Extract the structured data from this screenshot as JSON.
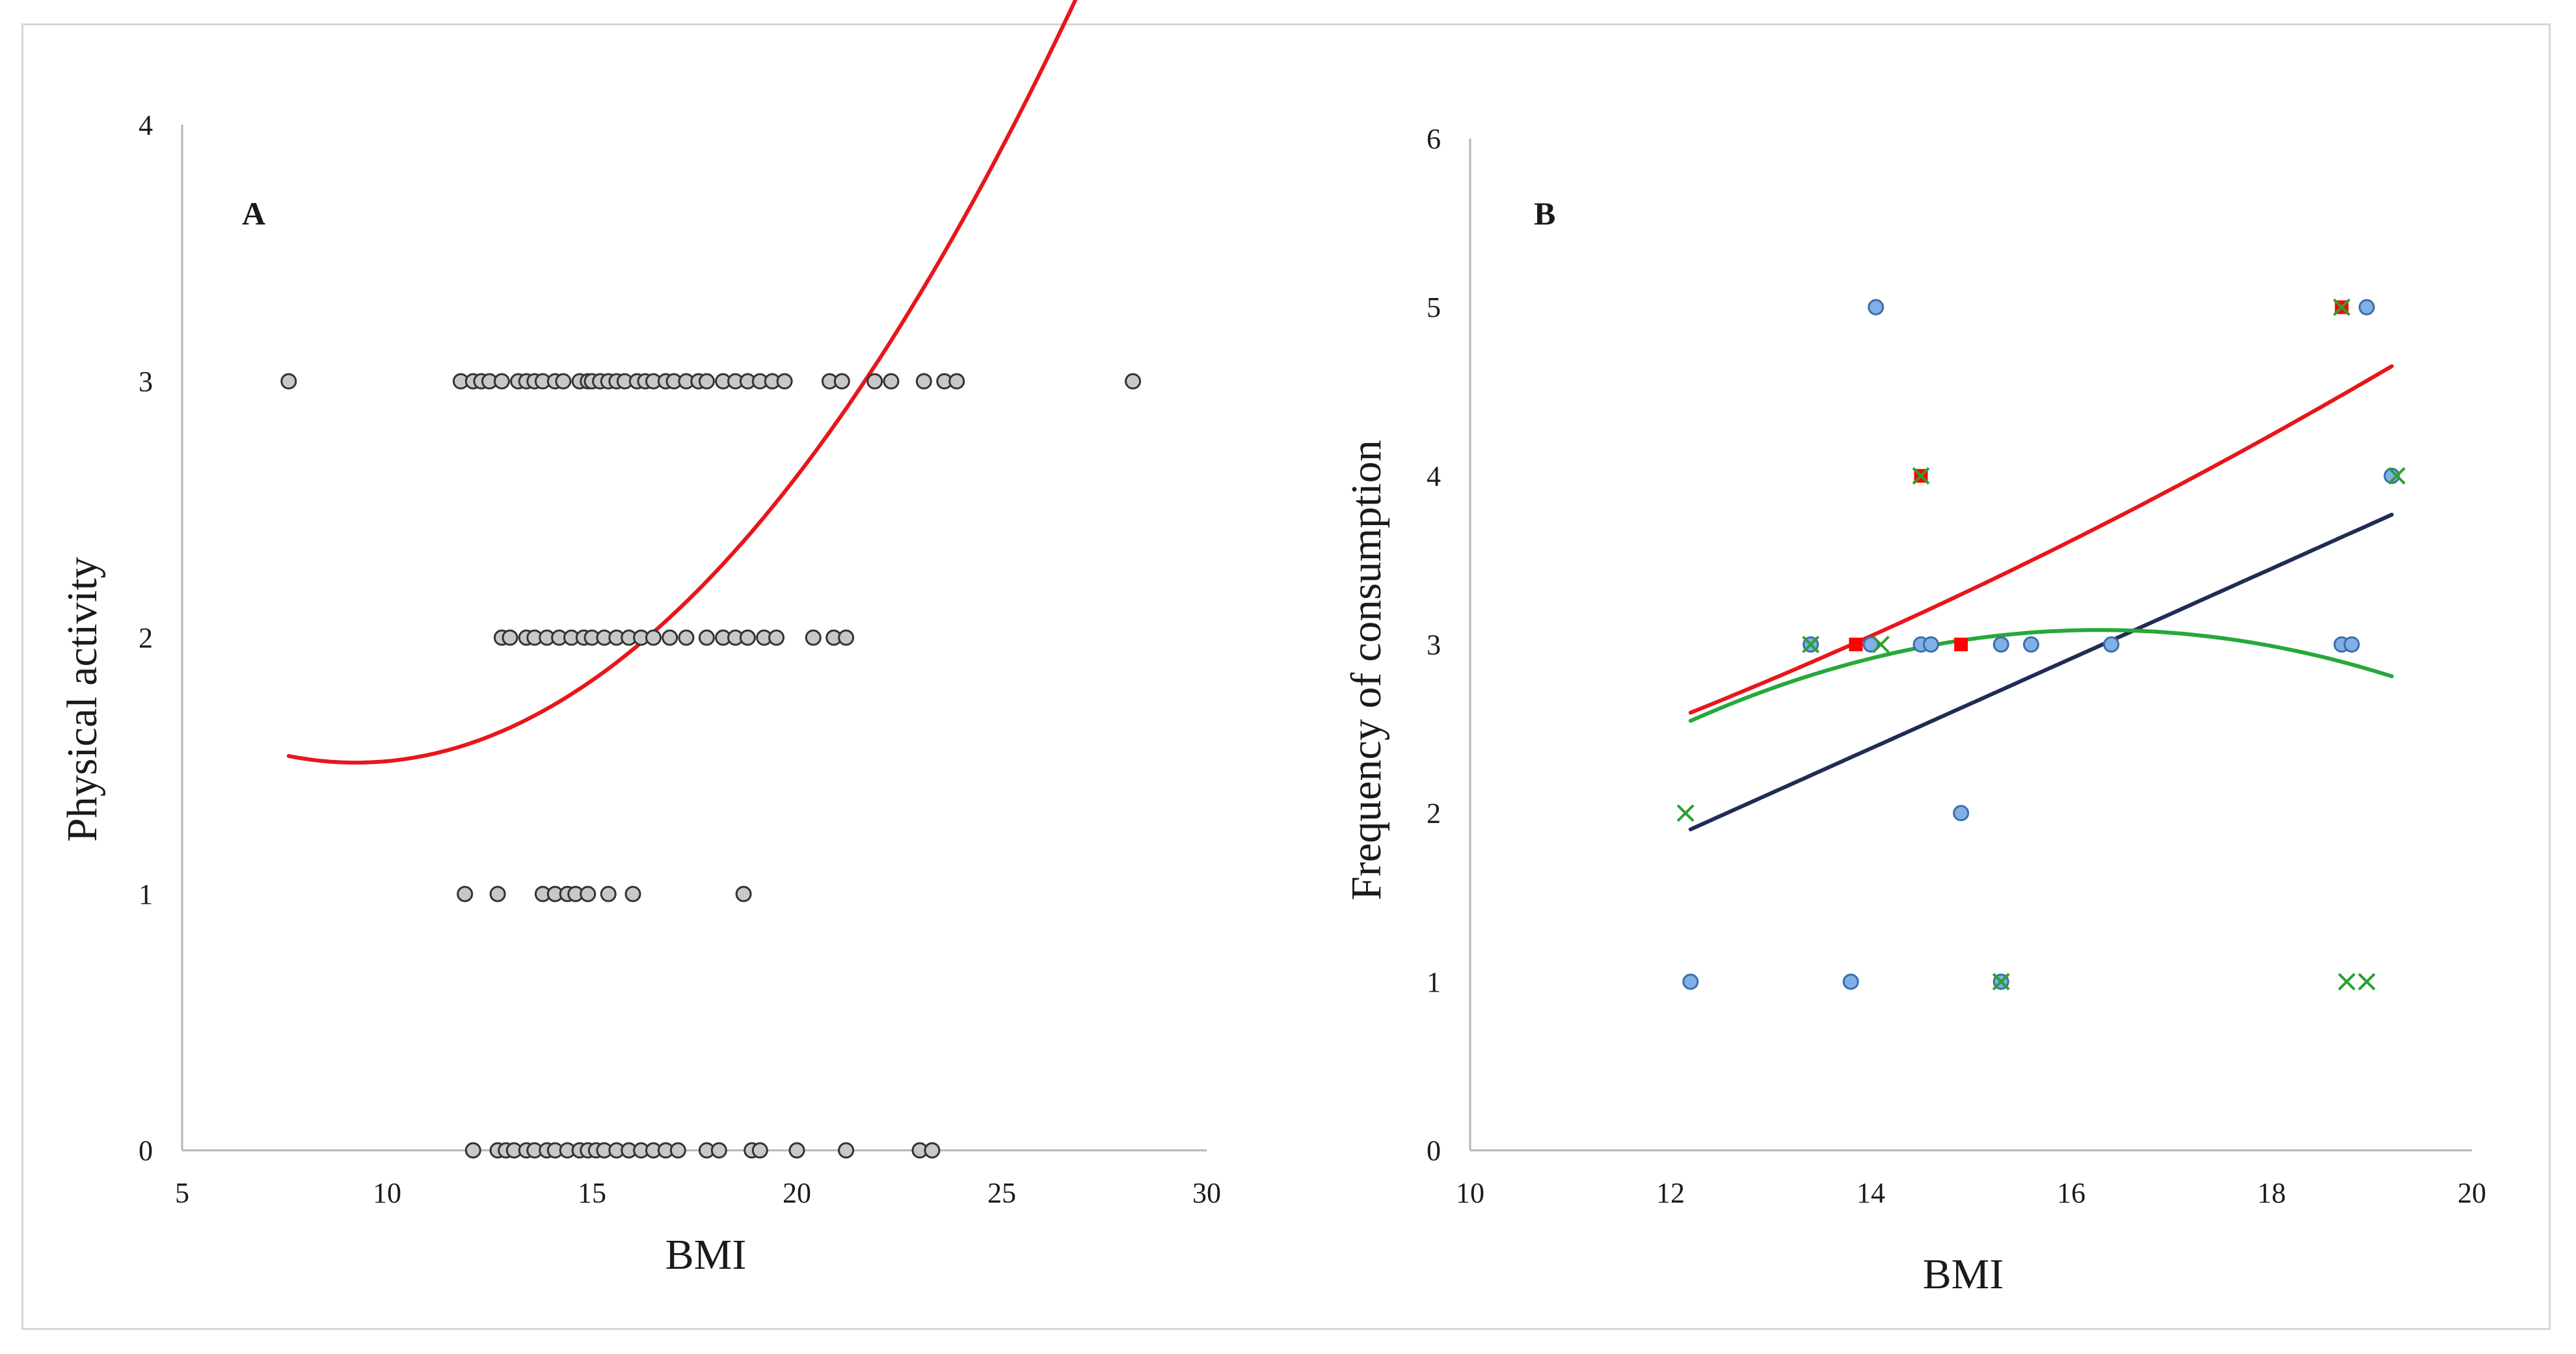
{
  "chart_data": [
    {
      "type": "scatter",
      "panel_label": "A",
      "xlabel": "BMI",
      "ylabel": "Physical activity",
      "xlim": [
        5,
        30
      ],
      "ylim": [
        0,
        4
      ],
      "xticks": [
        "5",
        "10",
        "15",
        "20",
        "25",
        "30"
      ],
      "yticks": [
        "0",
        "1",
        "2",
        "3",
        "4"
      ],
      "grid": false,
      "series": [
        {
          "name": "observations",
          "marker": "circle",
          "color": "#c8c8c8",
          "edge": "#333333",
          "points": [
            [
              7.6,
              3
            ],
            [
              11.8,
              3
            ],
            [
              12.1,
              3
            ],
            [
              12.3,
              3
            ],
            [
              12.5,
              3
            ],
            [
              12.8,
              3
            ],
            [
              13.2,
              3
            ],
            [
              13.4,
              3
            ],
            [
              13.6,
              3
            ],
            [
              13.8,
              3
            ],
            [
              14.1,
              3
            ],
            [
              14.3,
              3
            ],
            [
              14.7,
              3
            ],
            [
              14.9,
              3
            ],
            [
              15.0,
              3
            ],
            [
              15.2,
              3
            ],
            [
              15.4,
              3
            ],
            [
              15.6,
              3
            ],
            [
              15.8,
              3
            ],
            [
              16.1,
              3
            ],
            [
              16.3,
              3
            ],
            [
              16.5,
              3
            ],
            [
              16.8,
              3
            ],
            [
              17.0,
              3
            ],
            [
              17.3,
              3
            ],
            [
              17.6,
              3
            ],
            [
              17.8,
              3
            ],
            [
              18.2,
              3
            ],
            [
              18.5,
              3
            ],
            [
              18.8,
              3
            ],
            [
              19.1,
              3
            ],
            [
              19.4,
              3
            ],
            [
              19.7,
              3
            ],
            [
              20.8,
              3
            ],
            [
              21.1,
              3
            ],
            [
              21.9,
              3
            ],
            [
              22.3,
              3
            ],
            [
              23.1,
              3
            ],
            [
              23.6,
              3
            ],
            [
              23.9,
              3
            ],
            [
              28.2,
              3
            ],
            [
              12.8,
              2
            ],
            [
              13.0,
              2
            ],
            [
              13.4,
              2
            ],
            [
              13.6,
              2
            ],
            [
              13.9,
              2
            ],
            [
              14.2,
              2
            ],
            [
              14.5,
              2
            ],
            [
              14.8,
              2
            ],
            [
              15.0,
              2
            ],
            [
              15.3,
              2
            ],
            [
              15.6,
              2
            ],
            [
              15.9,
              2
            ],
            [
              16.2,
              2
            ],
            [
              16.5,
              2
            ],
            [
              16.9,
              2
            ],
            [
              17.3,
              2
            ],
            [
              17.8,
              2
            ],
            [
              18.2,
              2
            ],
            [
              18.5,
              2
            ],
            [
              18.8,
              2
            ],
            [
              19.2,
              2
            ],
            [
              19.5,
              2
            ],
            [
              20.4,
              2
            ],
            [
              20.9,
              2
            ],
            [
              21.2,
              2
            ],
            [
              11.9,
              1
            ],
            [
              12.7,
              1
            ],
            [
              13.8,
              1
            ],
            [
              14.1,
              1
            ],
            [
              14.4,
              1
            ],
            [
              14.6,
              1
            ],
            [
              14.9,
              1
            ],
            [
              15.4,
              1
            ],
            [
              16.0,
              1
            ],
            [
              18.7,
              1
            ],
            [
              12.1,
              0
            ],
            [
              12.7,
              0
            ],
            [
              12.9,
              0
            ],
            [
              13.1,
              0
            ],
            [
              13.4,
              0
            ],
            [
              13.6,
              0
            ],
            [
              13.9,
              0
            ],
            [
              14.1,
              0
            ],
            [
              14.4,
              0
            ],
            [
              14.7,
              0
            ],
            [
              14.9,
              0
            ],
            [
              15.1,
              0
            ],
            [
              15.3,
              0
            ],
            [
              15.6,
              0
            ],
            [
              15.9,
              0
            ],
            [
              16.2,
              0
            ],
            [
              16.5,
              0
            ],
            [
              16.8,
              0
            ],
            [
              17.1,
              0
            ],
            [
              17.8,
              0
            ],
            [
              18.1,
              0
            ],
            [
              18.9,
              0
            ],
            [
              19.1,
              0
            ],
            [
              20.0,
              0
            ],
            [
              21.2,
              0
            ],
            [
              23.0,
              0
            ],
            [
              23.3,
              0
            ]
          ]
        }
      ],
      "trendlines": [
        {
          "name": "polynomial trend",
          "color": "#e8161b",
          "type": "quadratic",
          "coeffs": [
            2.336,
            -0.1783,
            0.00965
          ],
          "x_range": [
            7.6,
            28.2
          ]
        }
      ]
    },
    {
      "type": "scatter",
      "panel_label": "B",
      "xlabel": "BMI",
      "ylabel": "Frequency of consumption",
      "xlim": [
        10,
        20
      ],
      "ylim": [
        0,
        6
      ],
      "xticks": [
        "10",
        "12",
        "14",
        "16",
        "18",
        "20"
      ],
      "yticks": [
        "0",
        "1",
        "2",
        "3",
        "4",
        "5",
        "6"
      ],
      "grid": false,
      "series": [
        {
          "name": "blue circles",
          "marker": "circle",
          "color": "#7fb0e6",
          "edge": "#3d6eaa",
          "points": [
            [
              12.2,
              1
            ],
            [
              13.4,
              3
            ],
            [
              13.8,
              1
            ],
            [
              14.0,
              3
            ],
            [
              14.05,
              5
            ],
            [
              14.5,
              3
            ],
            [
              14.6,
              3
            ],
            [
              14.9,
              2
            ],
            [
              15.3,
              3
            ],
            [
              15.3,
              1
            ],
            [
              15.6,
              3
            ],
            [
              16.4,
              3
            ],
            [
              18.7,
              3
            ],
            [
              18.8,
              3
            ],
            [
              18.95,
              5
            ],
            [
              19.2,
              4
            ]
          ]
        },
        {
          "name": "red squares",
          "marker": "square",
          "color": "#ff0000",
          "edge": "#ff0000",
          "points": [
            [
              13.85,
              3
            ],
            [
              14.5,
              4
            ],
            [
              14.9,
              3
            ],
            [
              18.7,
              5
            ]
          ]
        },
        {
          "name": "green crosses",
          "marker": "x",
          "color": "#2ca02c",
          "edge": "#2ca02c",
          "points": [
            [
              12.15,
              2
            ],
            [
              13.4,
              3
            ],
            [
              14.1,
              3
            ],
            [
              14.5,
              4
            ],
            [
              15.3,
              1
            ],
            [
              18.75,
              1
            ],
            [
              18.95,
              1
            ],
            [
              19.25,
              4
            ],
            [
              18.7,
              5
            ]
          ]
        }
      ],
      "trendlines": [
        {
          "name": "linear trend",
          "color": "#1f2d55",
          "type": "linear",
          "coeffs": [
            -1.349,
            0.2666
          ],
          "x_range": [
            12.2,
            19.2
          ]
        },
        {
          "name": "red trend",
          "color": "#e8161b",
          "type": "quadratic",
          "coeffs": [
            0.858,
            0.0464,
            0.00787
          ],
          "x_range": [
            12.2,
            19.2
          ]
        },
        {
          "name": "green trend",
          "color": "#26a83a",
          "type": "quadratic",
          "coeffs": [
            -5.48,
            1.052,
            -0.0323
          ],
          "x_range": [
            12.2,
            19.2
          ]
        }
      ]
    }
  ]
}
